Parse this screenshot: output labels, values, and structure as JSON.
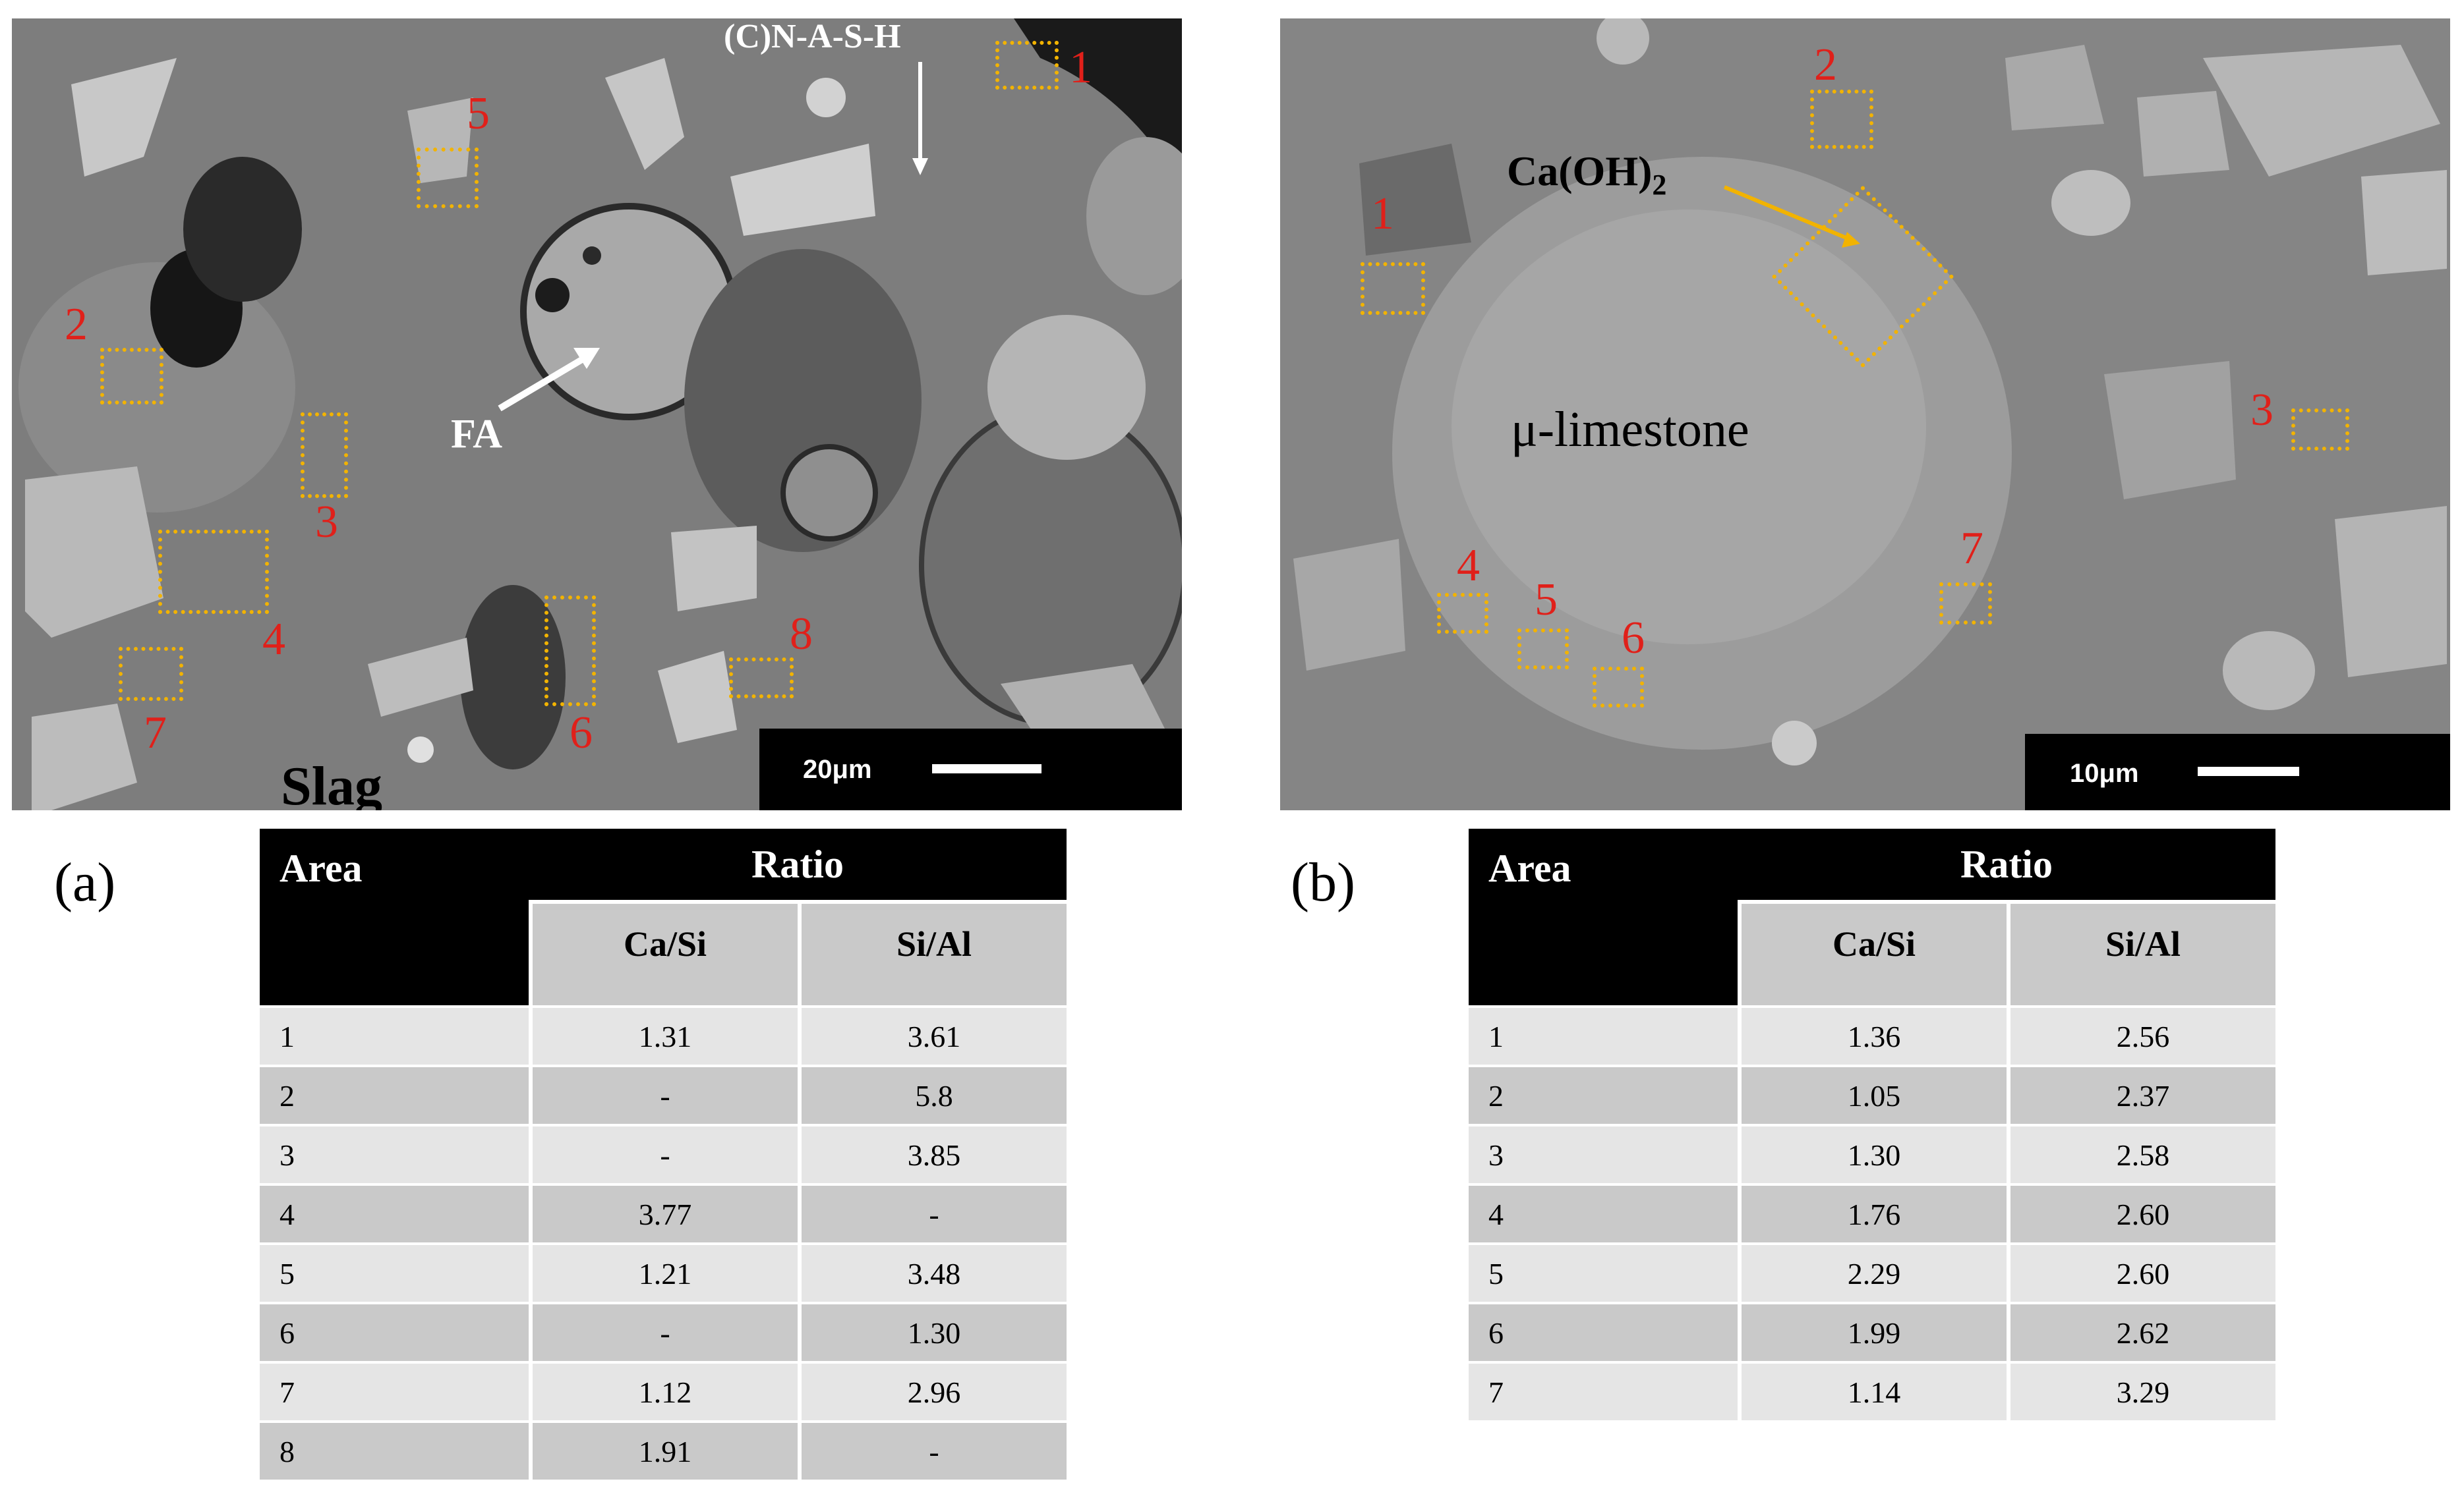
{
  "panel_a": {
    "label": "(a)",
    "image": {
      "labels": {
        "cnash": "(C)N-A-S-H",
        "fa": "FA",
        "slag": "Slag",
        "scale": "20μm"
      },
      "area_numbers": [
        "1",
        "2",
        "3",
        "4",
        "5",
        "6",
        "7",
        "8"
      ]
    },
    "table": {
      "header_area": "Area",
      "header_ratio": "Ratio",
      "col1": "Ca/Si",
      "col2": "Si/Al",
      "rows": [
        [
          "1",
          "1.31",
          "3.61"
        ],
        [
          "2",
          "-",
          "5.8"
        ],
        [
          "3",
          "-",
          "3.85"
        ],
        [
          "4",
          "3.77",
          "-"
        ],
        [
          "5",
          "1.21",
          "3.48"
        ],
        [
          "6",
          "-",
          "1.30"
        ],
        [
          "7",
          "1.12",
          "2.96"
        ],
        [
          "8",
          "1.91",
          "-"
        ]
      ]
    }
  },
  "panel_b": {
    "label": "(b)",
    "image": {
      "labels": {
        "caoh": "Ca(OH)",
        "caoh_sub": "2",
        "limestone": "μ-limestone",
        "scale": "10μm"
      },
      "area_numbers": [
        "1",
        "2",
        "3",
        "4",
        "5",
        "6",
        "7"
      ]
    },
    "table": {
      "header_area": "Area",
      "header_ratio": "Ratio",
      "col1": "Ca/Si",
      "col2": "Si/Al",
      "rows": [
        [
          "1",
          "1.36",
          "2.56"
        ],
        [
          "2",
          "1.05",
          "2.37"
        ],
        [
          "3",
          "1.30",
          "2.58"
        ],
        [
          "4",
          "1.76",
          "2.60"
        ],
        [
          "5",
          "2.29",
          "2.60"
        ],
        [
          "6",
          "1.99",
          "2.62"
        ],
        [
          "7",
          "1.14",
          "3.29"
        ]
      ]
    }
  },
  "colors": {
    "region_box": "#f2b300",
    "area_number": "#e0201a",
    "header_bg": "#000000",
    "subheader_bg": "#c9c9c9",
    "row_light": "#e5e5e5",
    "row_dark": "#c9c9c9"
  }
}
